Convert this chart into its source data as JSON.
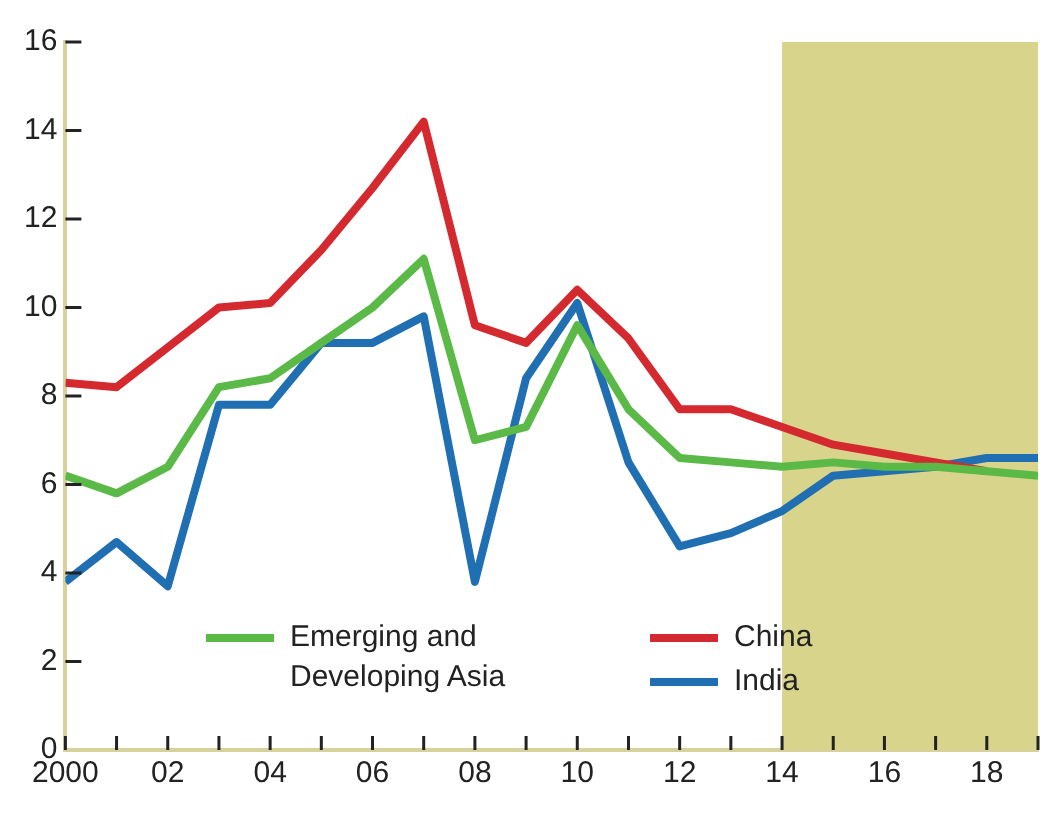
{
  "chart_data": {
    "type": "line",
    "x": [
      2000,
      2001,
      2002,
      2003,
      2004,
      2005,
      2006,
      2007,
      2008,
      2009,
      2010,
      2011,
      2012,
      2013,
      2014,
      2015,
      2016,
      2017,
      2018,
      2019
    ],
    "series": [
      {
        "name": "Emerging and Developing Asia",
        "color": "#5bb947",
        "values": [
          6.2,
          5.8,
          6.4,
          8.2,
          8.4,
          9.2,
          10.0,
          11.1,
          7.0,
          7.3,
          9.6,
          7.7,
          6.6,
          6.5,
          6.4,
          6.5,
          6.4,
          6.4,
          6.3,
          6.2
        ]
      },
      {
        "name": "China",
        "color": "#d42a2f",
        "values": [
          8.3,
          8.2,
          9.1,
          10.0,
          10.1,
          11.3,
          12.7,
          14.2,
          9.6,
          9.2,
          10.4,
          9.3,
          7.7,
          7.7,
          7.3,
          6.9,
          6.7,
          6.5,
          6.3,
          null
        ]
      },
      {
        "name": "India",
        "color": "#1f6fb2",
        "values": [
          3.8,
          4.7,
          3.7,
          7.8,
          7.8,
          9.2,
          9.2,
          9.8,
          3.8,
          8.4,
          10.1,
          6.5,
          4.6,
          4.9,
          5.4,
          6.2,
          6.3,
          6.4,
          6.6,
          6.6
        ]
      }
    ],
    "xlim": [
      2000,
      2019
    ],
    "xticks": [
      2000,
      {
        "value": 2001,
        "label": null
      },
      {
        "value": 2002,
        "label": "02"
      },
      {
        "value": 2003,
        "label": null
      },
      {
        "value": 2004,
        "label": "04"
      },
      {
        "value": 2005,
        "label": null
      },
      {
        "value": 2006,
        "label": "06"
      },
      {
        "value": 2007,
        "label": null
      },
      {
        "value": 2008,
        "label": "08"
      },
      {
        "value": 2009,
        "label": null
      },
      {
        "value": 2010,
        "label": "10"
      },
      {
        "value": 2011,
        "label": null
      },
      {
        "value": 2012,
        "label": "12"
      },
      {
        "value": 2013,
        "label": null
      },
      {
        "value": 2014,
        "label": "14"
      },
      {
        "value": 2015,
        "label": null
      },
      {
        "value": 2016,
        "label": "16"
      },
      {
        "value": 2017,
        "label": null
      },
      {
        "value": 2018,
        "label": "18"
      },
      {
        "value": 2019,
        "label": null
      }
    ],
    "ylim": [
      0,
      16
    ],
    "yticks": [
      0,
      2,
      4,
      6,
      8,
      10,
      12,
      14,
      16
    ],
    "bands": [
      {
        "axis": "x",
        "from": 2014,
        "to": 2019,
        "color": "#d9d48c"
      }
    ],
    "grid": false,
    "legend": "bottom",
    "marker": "none",
    "line_style": "solid"
  }
}
